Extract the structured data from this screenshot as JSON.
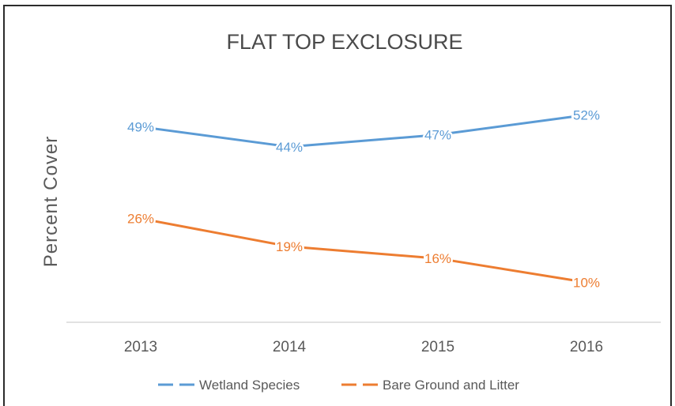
{
  "chart_data": {
    "type": "line",
    "title": "FLAT TOP EXCLOSURE",
    "xlabel": "",
    "ylabel": "Percent Cover",
    "categories": [
      "2013",
      "2014",
      "2015",
      "2016"
    ],
    "ylim": [
      0,
      60
    ],
    "grid": false,
    "legend_position": "bottom",
    "series": [
      {
        "name": "Wetland Species",
        "values": [
          49,
          44,
          47,
          52
        ],
        "labels": [
          "49%",
          "44%",
          "47%",
          "52%"
        ],
        "color": "#5b9bd5"
      },
      {
        "name": "Bare Ground and Litter",
        "values": [
          26,
          19,
          16,
          10
        ],
        "labels": [
          "26%",
          "19%",
          "16%",
          "10%"
        ],
        "color": "#ed7d31"
      }
    ]
  }
}
